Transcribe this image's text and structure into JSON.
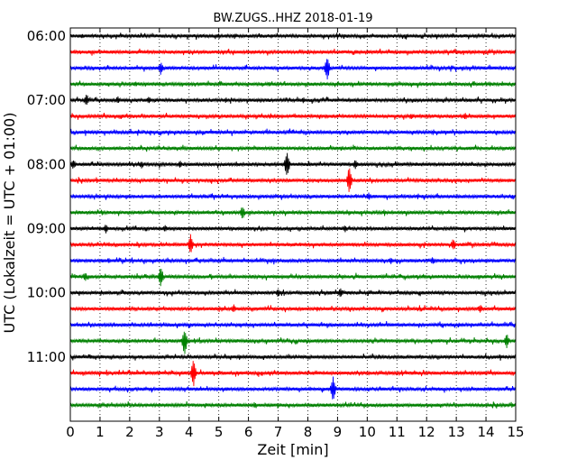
{
  "chart_data": {
    "type": "line",
    "title": "BW.ZUGS..HHZ 2018-01-19",
    "xlabel": "Zeit  [min]",
    "ylabel": "UTC (Lokalzeit = UTC + 01:00)",
    "xlim": [
      0,
      15
    ],
    "x_ticks": [
      "0",
      "1",
      "2",
      "3",
      "4",
      "5",
      "6",
      "7",
      "8",
      "9",
      "10",
      "11",
      "12",
      "13",
      "14",
      "15"
    ],
    "y_ticks": [
      "06:00",
      "07:00",
      "08:00",
      "09:00",
      "10:00",
      "11:00"
    ],
    "grid": true,
    "trace_colors": [
      "#000000",
      "#ff0000",
      "#0000ff",
      "#008000"
    ],
    "traces": [
      {
        "start": "06:00",
        "events": [
          {
            "t": 0.4,
            "amp": 0.35
          }
        ]
      },
      {
        "start": "06:15",
        "events": [
          {
            "t": 9.6,
            "amp": 0.3
          }
        ]
      },
      {
        "start": "06:30",
        "events": [
          {
            "t": 3.05,
            "amp": 0.9
          },
          {
            "t": 8.65,
            "amp": 1.6
          }
        ]
      },
      {
        "start": "06:45",
        "events": [
          {
            "t": 2.2,
            "amp": 0.4
          },
          {
            "t": 6.7,
            "amp": 0.3
          }
        ]
      },
      {
        "start": "07:00",
        "events": [
          {
            "t": 0.55,
            "amp": 0.8
          },
          {
            "t": 1.6,
            "amp": 0.5
          },
          {
            "t": 2.65,
            "amp": 0.5
          },
          {
            "t": 7.85,
            "amp": 0.4
          }
        ]
      },
      {
        "start": "07:15",
        "events": [
          {
            "t": 11.5,
            "amp": 0.4
          },
          {
            "t": 13.3,
            "amp": 0.5
          }
        ]
      },
      {
        "start": "07:30",
        "events": []
      },
      {
        "start": "07:45",
        "events": []
      },
      {
        "start": "08:00",
        "events": [
          {
            "t": 0.1,
            "amp": 0.7
          },
          {
            "t": 2.4,
            "amp": 0.5
          },
          {
            "t": 3.7,
            "amp": 0.5
          },
          {
            "t": 7.3,
            "amp": 1.7
          },
          {
            "t": 9.6,
            "amp": 0.6
          }
        ]
      },
      {
        "start": "08:15",
        "events": [
          {
            "t": 9.4,
            "amp": 1.9
          }
        ]
      },
      {
        "start": "08:30",
        "events": [
          {
            "t": 10.05,
            "amp": 0.5
          }
        ]
      },
      {
        "start": "08:45",
        "events": [
          {
            "t": 5.8,
            "amp": 0.9
          }
        ]
      },
      {
        "start": "09:00",
        "events": [
          {
            "t": 1.2,
            "amp": 0.6
          },
          {
            "t": 3.2,
            "amp": 0.5
          },
          {
            "t": 9.25,
            "amp": 0.5
          }
        ]
      },
      {
        "start": "09:15",
        "events": [
          {
            "t": 4.05,
            "amp": 1.4
          },
          {
            "t": 12.9,
            "amp": 0.8
          }
        ]
      },
      {
        "start": "09:30",
        "events": [
          {
            "t": 1.3,
            "amp": 0.4
          },
          {
            "t": 10.8,
            "amp": 0.5
          },
          {
            "t": 12.2,
            "amp": 0.5
          }
        ]
      },
      {
        "start": "09:45",
        "events": [
          {
            "t": 0.5,
            "amp": 0.6
          },
          {
            "t": 3.05,
            "amp": 1.3
          }
        ]
      },
      {
        "start": "10:00",
        "events": [
          {
            "t": 7.0,
            "amp": 0.6
          },
          {
            "t": 9.1,
            "amp": 0.6
          }
        ]
      },
      {
        "start": "10:15",
        "events": [
          {
            "t": 5.5,
            "amp": 0.6
          },
          {
            "t": 13.8,
            "amp": 0.6
          }
        ]
      },
      {
        "start": "10:30",
        "events": [
          {
            "t": 1.0,
            "amp": 0.3
          }
        ]
      },
      {
        "start": "10:45",
        "events": [
          {
            "t": 3.85,
            "amp": 1.8
          },
          {
            "t": 14.7,
            "amp": 1.0
          }
        ]
      },
      {
        "start": "11:00",
        "events": []
      },
      {
        "start": "11:15",
        "events": [
          {
            "t": 4.15,
            "amp": 1.8
          }
        ]
      },
      {
        "start": "11:30",
        "events": [
          {
            "t": 8.85,
            "amp": 1.7
          }
        ]
      },
      {
        "start": "11:45",
        "events": [
          {
            "t": 6.2,
            "amp": 0.4
          }
        ]
      }
    ]
  }
}
